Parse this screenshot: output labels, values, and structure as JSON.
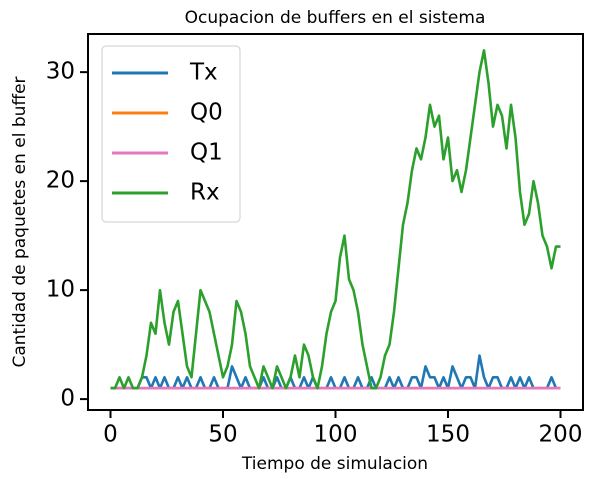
{
  "chart_data": {
    "type": "line",
    "title": "Ocupacion de buffers en el sistema",
    "xlabel": "Tiempo de simulacion",
    "ylabel": "Cantidad de paquetes en el buffer",
    "x": [
      0,
      2,
      4,
      6,
      8,
      10,
      12,
      14,
      16,
      18,
      20,
      22,
      24,
      26,
      28,
      30,
      32,
      34,
      36,
      38,
      40,
      42,
      44,
      46,
      48,
      50,
      52,
      54,
      56,
      58,
      60,
      62,
      64,
      66,
      68,
      70,
      72,
      74,
      76,
      78,
      80,
      82,
      84,
      86,
      88,
      90,
      92,
      94,
      96,
      98,
      100,
      102,
      104,
      106,
      108,
      110,
      112,
      114,
      116,
      118,
      120,
      122,
      124,
      126,
      128,
      130,
      132,
      134,
      136,
      138,
      140,
      142,
      144,
      146,
      148,
      150,
      152,
      154,
      156,
      158,
      160,
      162,
      164,
      166,
      168,
      170,
      172,
      174,
      176,
      178,
      180,
      182,
      184,
      186,
      188,
      190,
      192,
      194,
      196,
      198,
      200
    ],
    "series": [
      {
        "name": "Tx",
        "color": "#1f77b4",
        "values": [
          1,
          1,
          1,
          1,
          1,
          1,
          1,
          2,
          2,
          1,
          2,
          1,
          2,
          1,
          1,
          2,
          1,
          2,
          1,
          1,
          2,
          1,
          1,
          2,
          1,
          1,
          1,
          3,
          2,
          1,
          2,
          1,
          1,
          1,
          2,
          1,
          1,
          2,
          1,
          1,
          2,
          1,
          1,
          2,
          1,
          2,
          1,
          1,
          1,
          2,
          1,
          1,
          2,
          1,
          1,
          2,
          1,
          1,
          2,
          1,
          1,
          1,
          2,
          1,
          2,
          1,
          1,
          2,
          2,
          1,
          3,
          2,
          2,
          1,
          2,
          1,
          3,
          2,
          1,
          2,
          2,
          1,
          4,
          2,
          1,
          2,
          2,
          1,
          1,
          2,
          1,
          2,
          1,
          2,
          1,
          1,
          1,
          1,
          2,
          1,
          1
        ]
      },
      {
        "name": "Q0",
        "color": "#ff7f0e",
        "values": [
          1,
          1,
          1,
          1,
          1,
          1,
          1,
          1,
          1,
          1,
          1,
          1,
          1,
          1,
          1,
          1,
          1,
          1,
          1,
          1,
          1,
          1,
          1,
          1,
          1,
          1,
          1,
          1,
          1,
          1,
          1,
          1,
          1,
          1,
          1,
          1,
          1,
          1,
          1,
          1,
          1,
          1,
          1,
          1,
          1,
          1,
          1,
          1,
          1,
          1,
          1,
          1,
          1,
          1,
          1,
          1,
          1,
          1,
          1,
          1,
          1,
          1,
          1,
          1,
          1,
          1,
          1,
          1,
          1,
          1,
          1,
          1,
          1,
          1,
          1,
          1,
          1,
          1,
          1,
          1,
          1,
          1,
          1,
          1,
          1,
          1,
          1,
          1,
          1,
          1,
          1,
          1,
          1,
          1,
          1,
          1,
          1,
          1,
          1,
          1,
          1
        ]
      },
      {
        "name": "Q1",
        "color": "#e377c2",
        "values": [
          1,
          1,
          1,
          1,
          1,
          1,
          1,
          1,
          1,
          1,
          1,
          1,
          1,
          1,
          1,
          1,
          1,
          1,
          1,
          1,
          1,
          1,
          1,
          1,
          1,
          1,
          1,
          1,
          1,
          1,
          1,
          1,
          1,
          1,
          1,
          1,
          1,
          1,
          1,
          1,
          1,
          1,
          1,
          1,
          1,
          1,
          1,
          1,
          1,
          1,
          1,
          1,
          1,
          1,
          1,
          1,
          1,
          1,
          1,
          1,
          1,
          1,
          1,
          1,
          1,
          1,
          1,
          1,
          1,
          1,
          1,
          1,
          1,
          1,
          1,
          1,
          1,
          1,
          1,
          1,
          1,
          1,
          1,
          1,
          1,
          1,
          1,
          1,
          1,
          1,
          1,
          1,
          1,
          1,
          1,
          1,
          1,
          1,
          1,
          1,
          1
        ]
      },
      {
        "name": "Rx",
        "color": "#2ca02c",
        "values": [
          1,
          1,
          2,
          1,
          2,
          1,
          1,
          2,
          4,
          7,
          6,
          10,
          7,
          5,
          8,
          9,
          6,
          3,
          2,
          6,
          10,
          9,
          8,
          6,
          4,
          2,
          3,
          5,
          9,
          8,
          6,
          3,
          2,
          1,
          3,
          2,
          1,
          3,
          2,
          1,
          2,
          4,
          2,
          5,
          4,
          2,
          1,
          3,
          6,
          8,
          9,
          13,
          15,
          11,
          10,
          8,
          5,
          3,
          1,
          1,
          2,
          4,
          5,
          8,
          12,
          16,
          18,
          21,
          23,
          22,
          24,
          27,
          25,
          26,
          22,
          24,
          20,
          21,
          19,
          21,
          24,
          27,
          30,
          32,
          29,
          25,
          27,
          26,
          23,
          27,
          24,
          19,
          16,
          17,
          20,
          18,
          15,
          14,
          12,
          14,
          14
        ]
      }
    ],
    "xlim": [
      -10,
      210
    ],
    "xticks": [
      0,
      50,
      100,
      150,
      200
    ],
    "ylim": [
      -1,
      33.5
    ],
    "yticks": [
      0,
      10,
      20,
      30
    ],
    "legend": "upper left"
  }
}
